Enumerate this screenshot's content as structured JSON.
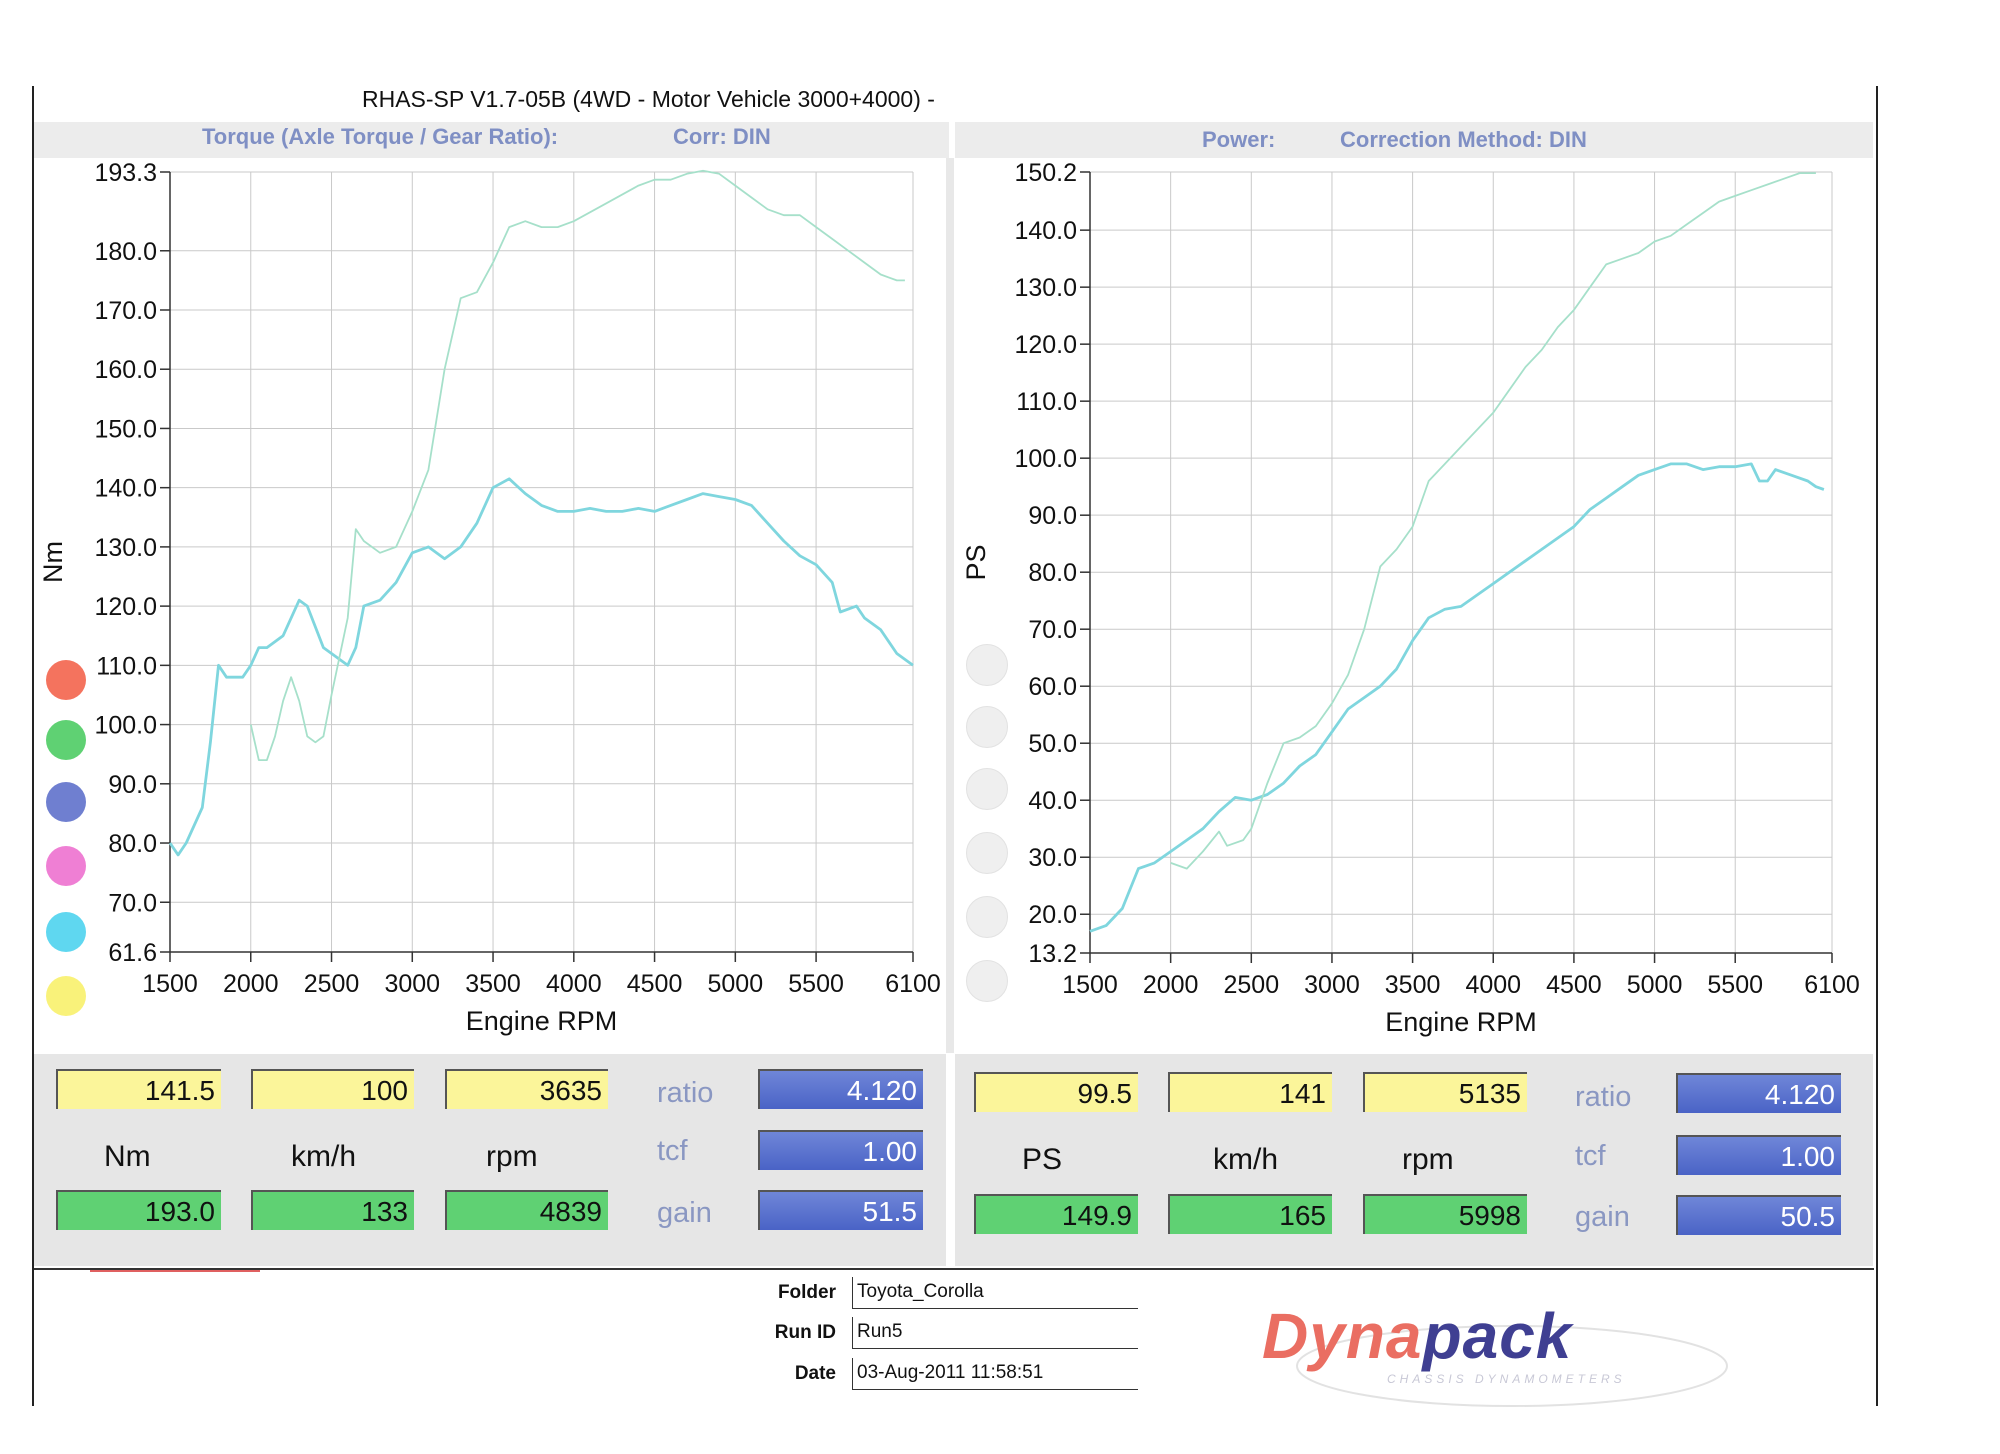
{
  "app_title": "RHAS-SP V1.7-05B  (4WD - Motor Vehicle 3000+4000) -",
  "torque_header": {
    "label": "Torque (Axle Torque / Gear Ratio):",
    "corr": "Corr: DIN"
  },
  "power_header": {
    "label": "Power:",
    "corr": "Correction Method: DIN"
  },
  "colors": {
    "curve": "#7fd6de",
    "curve_light": "#a6e0ca",
    "header_text": "#7f8fc4",
    "legend": [
      "#f4735e",
      "#5fd173",
      "#6f7fd0",
      "#ef7fd4",
      "#5fd7f0",
      "#f9f27a"
    ]
  },
  "chart_data": [
    {
      "type": "line",
      "ylabel": "Nm",
      "xlabel": "Engine RPM",
      "xlim": [
        1500,
        6100
      ],
      "ylim": [
        61.6,
        193.3
      ],
      "x_ticks": [
        "1500",
        "2000",
        "2500",
        "3000",
        "3500",
        "4000",
        "4500",
        "5000",
        "5500",
        "6100"
      ],
      "y_ticks": [
        {
          "v": 193.3,
          "label": "193.3"
        },
        {
          "v": 180,
          "label": "180.0"
        },
        {
          "v": 170,
          "label": "170.0"
        },
        {
          "v": 160,
          "label": "160.0"
        },
        {
          "v": 150,
          "label": "150.0"
        },
        {
          "v": 140,
          "label": "140.0"
        },
        {
          "v": 130,
          "label": "130.0"
        },
        {
          "v": 120,
          "label": "120.0"
        },
        {
          "v": 110,
          "label": "110.0"
        },
        {
          "v": 100,
          "label": "100.0"
        },
        {
          "v": 90,
          "label": "90.0"
        },
        {
          "v": 80,
          "label": "80.0"
        },
        {
          "v": 70,
          "label": "70.0"
        },
        {
          "v": 61.6,
          "label": "61.6"
        }
      ],
      "grid": true,
      "series": [
        {
          "style": "dark",
          "points": [
            [
              1500,
              80
            ],
            [
              1550,
              78
            ],
            [
              1600,
              80
            ],
            [
              1700,
              86
            ],
            [
              1750,
              97
            ],
            [
              1800,
              110
            ],
            [
              1850,
              108
            ],
            [
              1950,
              108
            ],
            [
              2000,
              110
            ],
            [
              2050,
              113
            ],
            [
              2100,
              113
            ],
            [
              2200,
              115
            ],
            [
              2300,
              121
            ],
            [
              2350,
              120
            ],
            [
              2450,
              113
            ],
            [
              2550,
              111
            ],
            [
              2600,
              110
            ],
            [
              2650,
              113
            ],
            [
              2700,
              120
            ],
            [
              2800,
              121
            ],
            [
              2900,
              124
            ],
            [
              3000,
              129
            ],
            [
              3100,
              130
            ],
            [
              3200,
              128
            ],
            [
              3300,
              130
            ],
            [
              3400,
              134
            ],
            [
              3500,
              140
            ],
            [
              3600,
              141.5
            ],
            [
              3700,
              139
            ],
            [
              3800,
              137
            ],
            [
              3900,
              136
            ],
            [
              4000,
              136
            ],
            [
              4100,
              136.5
            ],
            [
              4200,
              136
            ],
            [
              4300,
              136
            ],
            [
              4400,
              136.5
            ],
            [
              4500,
              136
            ],
            [
              4600,
              137
            ],
            [
              4700,
              138
            ],
            [
              4800,
              139
            ],
            [
              4900,
              138.5
            ],
            [
              5000,
              138
            ],
            [
              5100,
              137
            ],
            [
              5200,
              134
            ],
            [
              5300,
              131
            ],
            [
              5400,
              128.5
            ],
            [
              5500,
              127
            ],
            [
              5600,
              124
            ],
            [
              5650,
              119
            ],
            [
              5750,
              120
            ],
            [
              5800,
              118
            ],
            [
              5900,
              116
            ],
            [
              6000,
              112
            ],
            [
              6100,
              110
            ]
          ]
        },
        {
          "style": "light",
          "points": [
            [
              2000,
              100
            ],
            [
              2050,
              94
            ],
            [
              2100,
              94
            ],
            [
              2150,
              98
            ],
            [
              2200,
              104
            ],
            [
              2250,
              108
            ],
            [
              2300,
              104
            ],
            [
              2350,
              98
            ],
            [
              2400,
              97
            ],
            [
              2450,
              98
            ],
            [
              2500,
              105
            ],
            [
              2600,
              118
            ],
            [
              2650,
              133
            ],
            [
              2700,
              131
            ],
            [
              2800,
              129
            ],
            [
              2900,
              130
            ],
            [
              3000,
              136
            ],
            [
              3100,
              143
            ],
            [
              3200,
              160
            ],
            [
              3300,
              172
            ],
            [
              3400,
              173
            ],
            [
              3500,
              178
            ],
            [
              3600,
              184
            ],
            [
              3700,
              185
            ],
            [
              3800,
              184
            ],
            [
              3900,
              184
            ],
            [
              4000,
              185
            ],
            [
              4200,
              188
            ],
            [
              4400,
              191
            ],
            [
              4500,
              192
            ],
            [
              4600,
              192
            ],
            [
              4700,
              193
            ],
            [
              4800,
              193.5
            ],
            [
              4900,
              193
            ],
            [
              5000,
              191
            ],
            [
              5100,
              189
            ],
            [
              5200,
              187
            ],
            [
              5300,
              186
            ],
            [
              5400,
              186
            ],
            [
              5500,
              184
            ],
            [
              5600,
              182
            ],
            [
              5700,
              180
            ],
            [
              5800,
              178
            ],
            [
              5900,
              176
            ],
            [
              6000,
              175
            ],
            [
              6050,
              175
            ]
          ]
        }
      ]
    },
    {
      "type": "line",
      "ylabel": "PS",
      "xlabel": "Engine RPM",
      "xlim": [
        1500,
        6100
      ],
      "ylim": [
        13.2,
        150.2
      ],
      "x_ticks": [
        "1500",
        "2000",
        "2500",
        "3000",
        "3500",
        "4000",
        "4500",
        "5000",
        "5500",
        "6100"
      ],
      "y_ticks": [
        {
          "v": 150.2,
          "label": "150.2"
        },
        {
          "v": 140,
          "label": "140.0"
        },
        {
          "v": 130,
          "label": "130.0"
        },
        {
          "v": 120,
          "label": "120.0"
        },
        {
          "v": 110,
          "label": "110.0"
        },
        {
          "v": 100,
          "label": "100.0"
        },
        {
          "v": 90,
          "label": "90.0"
        },
        {
          "v": 80,
          "label": "80.0"
        },
        {
          "v": 70,
          "label": "70.0"
        },
        {
          "v": 60,
          "label": "60.0"
        },
        {
          "v": 50,
          "label": "50.0"
        },
        {
          "v": 40,
          "label": "40.0"
        },
        {
          "v": 30,
          "label": "30.0"
        },
        {
          "v": 20,
          "label": "20.0"
        },
        {
          "v": 13.2,
          "label": "13.2"
        }
      ],
      "grid": true,
      "series": [
        {
          "style": "dark",
          "points": [
            [
              1500,
              17
            ],
            [
              1600,
              18
            ],
            [
              1700,
              21
            ],
            [
              1800,
              28
            ],
            [
              1900,
              29
            ],
            [
              2000,
              31
            ],
            [
              2100,
              33
            ],
            [
              2200,
              35
            ],
            [
              2300,
              38
            ],
            [
              2400,
              40.5
            ],
            [
              2500,
              40
            ],
            [
              2600,
              41
            ],
            [
              2700,
              43
            ],
            [
              2800,
              46
            ],
            [
              2900,
              48
            ],
            [
              3000,
              52
            ],
            [
              3100,
              56
            ],
            [
              3200,
              58
            ],
            [
              3300,
              60
            ],
            [
              3400,
              63
            ],
            [
              3500,
              68
            ],
            [
              3600,
              72
            ],
            [
              3700,
              73.5
            ],
            [
              3800,
              74
            ],
            [
              3900,
              76
            ],
            [
              4000,
              78
            ],
            [
              4100,
              80
            ],
            [
              4200,
              82
            ],
            [
              4300,
              84
            ],
            [
              4400,
              86
            ],
            [
              4500,
              88
            ],
            [
              4600,
              91
            ],
            [
              4700,
              93
            ],
            [
              4800,
              95
            ],
            [
              4900,
              97
            ],
            [
              5000,
              98
            ],
            [
              5100,
              99
            ],
            [
              5200,
              99
            ],
            [
              5300,
              98
            ],
            [
              5400,
              98.5
            ],
            [
              5500,
              98.5
            ],
            [
              5600,
              99
            ],
            [
              5650,
              96
            ],
            [
              5700,
              96
            ],
            [
              5750,
              98
            ],
            [
              5850,
              97
            ],
            [
              5950,
              96
            ],
            [
              6000,
              95
            ],
            [
              6050,
              94.5
            ]
          ]
        },
        {
          "style": "light",
          "points": [
            [
              2000,
              29
            ],
            [
              2100,
              28
            ],
            [
              2200,
              31
            ],
            [
              2300,
              34.5
            ],
            [
              2350,
              32
            ],
            [
              2450,
              33
            ],
            [
              2500,
              35
            ],
            [
              2600,
              43
            ],
            [
              2700,
              50
            ],
            [
              2800,
              51
            ],
            [
              2900,
              53
            ],
            [
              3000,
              57
            ],
            [
              3100,
              62
            ],
            [
              3200,
              70
            ],
            [
              3300,
              81
            ],
            [
              3400,
              84
            ],
            [
              3500,
              88
            ],
            [
              3600,
              96
            ],
            [
              3700,
              99
            ],
            [
              3800,
              102
            ],
            [
              3900,
              105
            ],
            [
              4000,
              108
            ],
            [
              4100,
              112
            ],
            [
              4200,
              116
            ],
            [
              4300,
              119
            ],
            [
              4400,
              123
            ],
            [
              4500,
              126
            ],
            [
              4600,
              130
            ],
            [
              4700,
              134
            ],
            [
              4800,
              135
            ],
            [
              4900,
              136
            ],
            [
              5000,
              138
            ],
            [
              5100,
              139
            ],
            [
              5200,
              141
            ],
            [
              5300,
              143
            ],
            [
              5400,
              145
            ],
            [
              5500,
              146
            ],
            [
              5600,
              147
            ],
            [
              5700,
              148
            ],
            [
              5800,
              149
            ],
            [
              5900,
              150
            ],
            [
              6000,
              150
            ]
          ]
        }
      ]
    }
  ],
  "stats_left": {
    "row1": [
      "141.5",
      "100",
      "3635"
    ],
    "units": [
      "Nm",
      "km/h",
      "rpm"
    ],
    "row2": [
      "193.0",
      "133",
      "4839"
    ],
    "labels": [
      "ratio",
      "tcf",
      "gain"
    ],
    "values": [
      "4.120",
      "1.00",
      "51.5"
    ]
  },
  "stats_right": {
    "row1": [
      "99.5",
      "141",
      "5135"
    ],
    "units": [
      "PS",
      "km/h",
      "rpm"
    ],
    "row2": [
      "149.9",
      "165",
      "5998"
    ],
    "labels": [
      "ratio",
      "tcf",
      "gain"
    ],
    "values": [
      "4.120",
      "1.00",
      "50.5"
    ]
  },
  "footer": {
    "folder_label": "Folder",
    "folder": "Toyota_Corolla",
    "run_label": "Run ID",
    "run": "Run5",
    "date_label": "Date",
    "date": "03-Aug-2011  11:58:51"
  },
  "logo": {
    "name": "Dynapack",
    "tagline": "CHASSIS DYNAMOMETERS"
  }
}
